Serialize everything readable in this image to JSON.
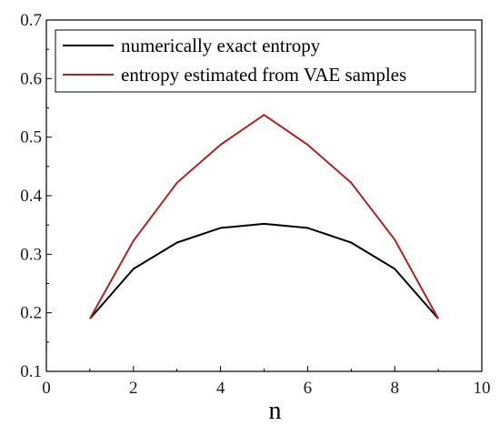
{
  "chart_data": {
    "type": "line",
    "title": "",
    "xlabel": "n",
    "ylabel": "",
    "xlim": [
      0,
      10
    ],
    "ylim": [
      0.1,
      0.7
    ],
    "xticks": [
      0,
      2,
      4,
      6,
      8,
      10
    ],
    "yticks": [
      0.1,
      0.2,
      0.3,
      0.4,
      0.5,
      0.6,
      0.7
    ],
    "x": [
      1,
      2,
      3,
      4,
      5,
      6,
      7,
      8,
      9
    ],
    "grid": false,
    "legend_position": "top-left",
    "series": [
      {
        "name": "numerically exact entropy",
        "color": "#000000",
        "values": [
          0.19,
          0.275,
          0.32,
          0.345,
          0.352,
          0.345,
          0.32,
          0.275,
          0.19
        ]
      },
      {
        "name": "entropy estimated from VAE samples",
        "color": "#b22222",
        "values": [
          0.19,
          0.323,
          0.422,
          0.487,
          0.538,
          0.487,
          0.422,
          0.325,
          0.19
        ]
      }
    ]
  }
}
